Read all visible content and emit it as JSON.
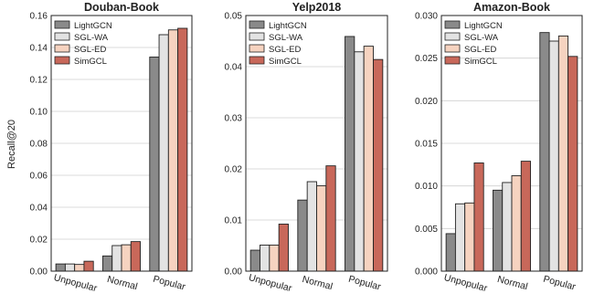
{
  "figure": {
    "ylabel": "Recall@20"
  },
  "legend_labels": [
    "LightGCN",
    "SGL-WA",
    "SGL-ED",
    "SimGCL"
  ],
  "colors": {
    "LightGCN": "#8a8a8a",
    "SGL-WA": "#e3e3e3",
    "SGL-ED": "#f6d3c0",
    "SimGCL": "#c8685a",
    "grid": "#cfcfcf",
    "edge": "#222222"
  },
  "chart_data": [
    {
      "type": "bar",
      "title": "Douban-Book",
      "ylabel": "Recall@20",
      "categories": [
        "Unpopular",
        "Normal",
        "Popular"
      ],
      "ylim": [
        0,
        0.16
      ],
      "yticks": [
        "0.00",
        "0.02",
        "0.04",
        "0.06",
        "0.08",
        "0.10",
        "0.12",
        "0.14",
        "0.16"
      ],
      "grid": true,
      "legend": "top-left",
      "series": [
        {
          "name": "LightGCN",
          "values": [
            0.0045,
            0.0095,
            0.134
          ]
        },
        {
          "name": "SGL-WA",
          "values": [
            0.0045,
            0.016,
            0.148
          ]
        },
        {
          "name": "SGL-ED",
          "values": [
            0.0042,
            0.0165,
            0.151
          ]
        },
        {
          "name": "SimGCL",
          "values": [
            0.0062,
            0.0185,
            0.152
          ]
        }
      ]
    },
    {
      "type": "bar",
      "title": "Yelp2018",
      "categories": [
        "Unpopular",
        "Normal",
        "Popular"
      ],
      "ylim": [
        0,
        0.05
      ],
      "yticks": [
        "0.00",
        "0.01",
        "0.02",
        "0.03",
        "0.04",
        "0.05"
      ],
      "grid": true,
      "legend": "top-left",
      "series": [
        {
          "name": "LightGCN",
          "values": [
            0.0041,
            0.0139,
            0.0459
          ]
        },
        {
          "name": "SGL-WA",
          "values": [
            0.0051,
            0.0175,
            0.0429
          ]
        },
        {
          "name": "SGL-ED",
          "values": [
            0.0051,
            0.0167,
            0.044
          ]
        },
        {
          "name": "SimGCL",
          "values": [
            0.0092,
            0.0206,
            0.0414
          ]
        }
      ]
    },
    {
      "type": "bar",
      "title": "Amazon-Book",
      "categories": [
        "Unpopular",
        "Normal",
        "Popular"
      ],
      "ylim": [
        0,
        0.03
      ],
      "yticks": [
        "0.000",
        "0.005",
        "0.010",
        "0.015",
        "0.020",
        "0.025",
        "0.030"
      ],
      "grid": true,
      "legend": "top-left",
      "series": [
        {
          "name": "LightGCN",
          "values": [
            0.0044,
            0.0095,
            0.028
          ]
        },
        {
          "name": "SGL-WA",
          "values": [
            0.0079,
            0.0104,
            0.027
          ]
        },
        {
          "name": "SGL-ED",
          "values": [
            0.008,
            0.0112,
            0.0276
          ]
        },
        {
          "name": "SimGCL",
          "values": [
            0.0127,
            0.0129,
            0.0252
          ]
        }
      ]
    }
  ]
}
